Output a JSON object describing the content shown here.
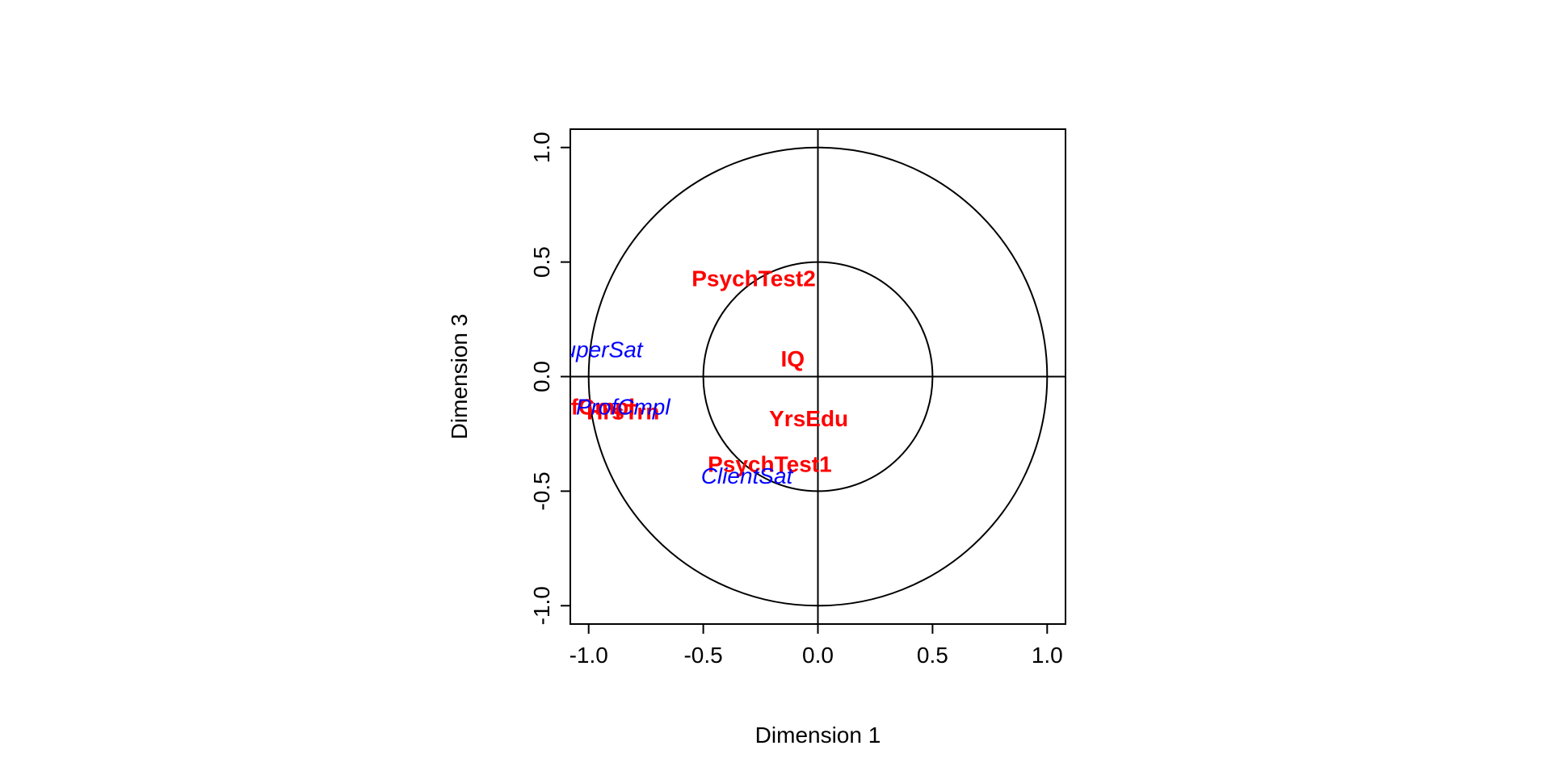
{
  "chart_data": {
    "type": "scatter",
    "title": "",
    "xlabel": "Dimension  1",
    "ylabel": "Dimension  3",
    "xlim": [
      -1.08,
      1.08
    ],
    "ylim": [
      -1.08,
      1.08
    ],
    "xticks": [
      -1.0,
      -0.5,
      0.0,
      0.5,
      1.0
    ],
    "yticks": [
      -1.0,
      -0.5,
      0.0,
      0.5,
      1.0
    ],
    "xtick_labels": [
      "-1.0",
      "-0.5",
      "0.0",
      "0.5",
      "1.0"
    ],
    "ytick_labels": [
      "-1.0",
      "-0.5",
      "0.0",
      "0.5",
      "1.0"
    ],
    "circles": [
      0.5,
      1.0
    ],
    "reference_lines": {
      "x": 0,
      "y": 0
    },
    "grid": false,
    "series": [
      {
        "color": "#ff0000",
        "style": "bold",
        "points": [
          {
            "label": "PsychTest2",
            "x": -0.28,
            "y": 0.42
          },
          {
            "label": "IQ",
            "x": -0.11,
            "y": 0.07
          },
          {
            "label": "YrsEdu",
            "x": -0.04,
            "y": -0.19
          },
          {
            "label": "PsychTest1",
            "x": -0.21,
            "y": -0.39
          },
          {
            "label": "HrsTrn",
            "x": -0.85,
            "y": -0.16
          },
          {
            "label": "ProfCmpl",
            "x": -1.02,
            "y": -0.14
          }
        ]
      },
      {
        "color": "#0000ff",
        "style": "italic",
        "points": [
          {
            "label": "SuperSat",
            "x": -0.97,
            "y": 0.11
          },
          {
            "label": "ProfCmpl",
            "x": -0.85,
            "y": -0.14
          },
          {
            "label": "ClientSat",
            "x": -0.31,
            "y": -0.44
          }
        ]
      }
    ]
  }
}
